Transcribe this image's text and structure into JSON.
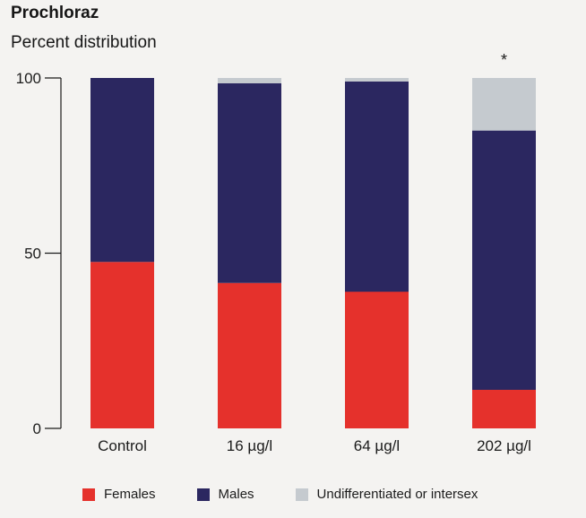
{
  "chart_data": {
    "type": "bar",
    "stacked": true,
    "title": "Prochloraz",
    "subtitle": "Percent distribution",
    "categories": [
      "Control",
      "16 µg/l",
      "64 µg/l",
      "202 µg/l"
    ],
    "series": [
      {
        "name": "Females",
        "color": "#e5312c",
        "values": [
          47.5,
          41.5,
          39,
          11
        ]
      },
      {
        "name": "Males",
        "color": "#2b2760",
        "values": [
          52.5,
          57,
          60,
          74
        ]
      },
      {
        "name": "Undifferentiated or intersex",
        "color": "#c5cacf",
        "values": [
          0,
          1.5,
          1,
          15
        ]
      }
    ],
    "yticks": [
      "0",
      "50",
      "100"
    ],
    "ylim": [
      0,
      100
    ],
    "annotation": "*",
    "annotation_category": "202 µg/l",
    "legend_position": "bottom"
  }
}
